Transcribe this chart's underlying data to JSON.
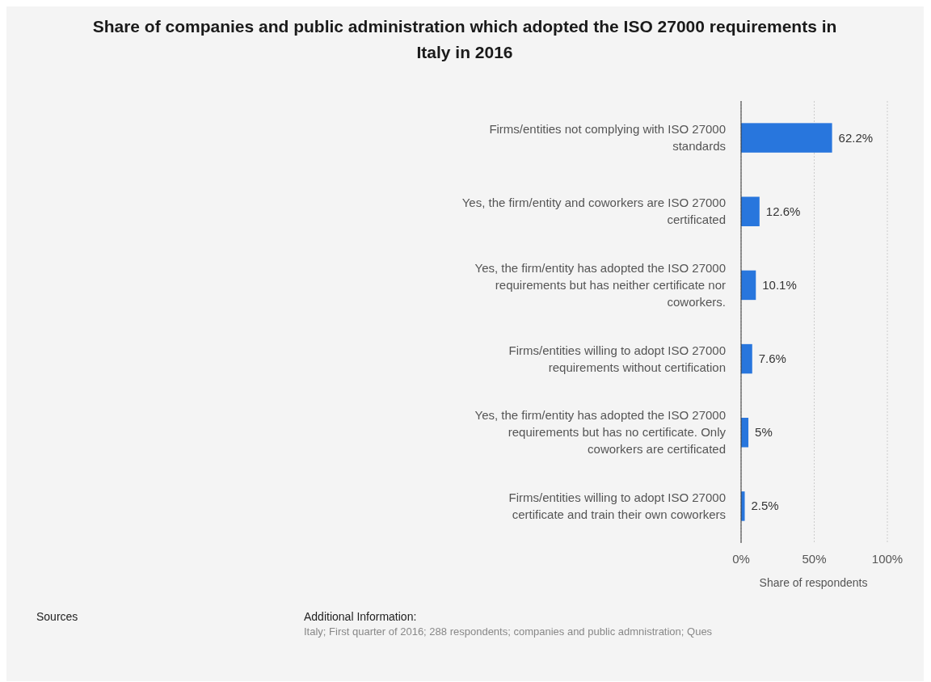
{
  "chart_data": {
    "type": "bar",
    "orientation": "horizontal",
    "title": "Share of companies and public administration which adopted the ISO 27000 requirements in Italy in 2016",
    "xlabel": "Share of respondents",
    "categories": [
      "Firms/entities not complying with ISO 27000 standards",
      "Yes, the firm/entity and coworkers are ISO 27000 certificated",
      "Yes, the firm/entity has adopted the ISO 27000 requirements but has neither certificate nor coworkers.",
      "Firms/entities willing to adopt ISO 27000 requirements without certification",
      "Yes, the firm/entity has adopted the ISO 27000 requirements but has no certificate. Only coworkers are certificated",
      "Firms/entities willing to adopt ISO 27000 certificate and train their own coworkers"
    ],
    "values": [
      62.2,
      12.6,
      10.1,
      7.6,
      5,
      2.5
    ],
    "value_labels": [
      "62.2%",
      "12.6%",
      "10.1%",
      "7.6%",
      "5%",
      "2.5%"
    ],
    "color": "#2876dd",
    "xlim": [
      0,
      100
    ],
    "xticks": [
      {
        "value": 0,
        "label": "0%"
      },
      {
        "value": 50,
        "label": "50%"
      },
      {
        "value": 100,
        "label": "100%"
      }
    ],
    "grid": "x",
    "annotations": [
      "Sources",
      "Additional Information:",
      "Italy; First quarter of 2016; 288 respondents; companies and public admnistration; Ques"
    ]
  }
}
